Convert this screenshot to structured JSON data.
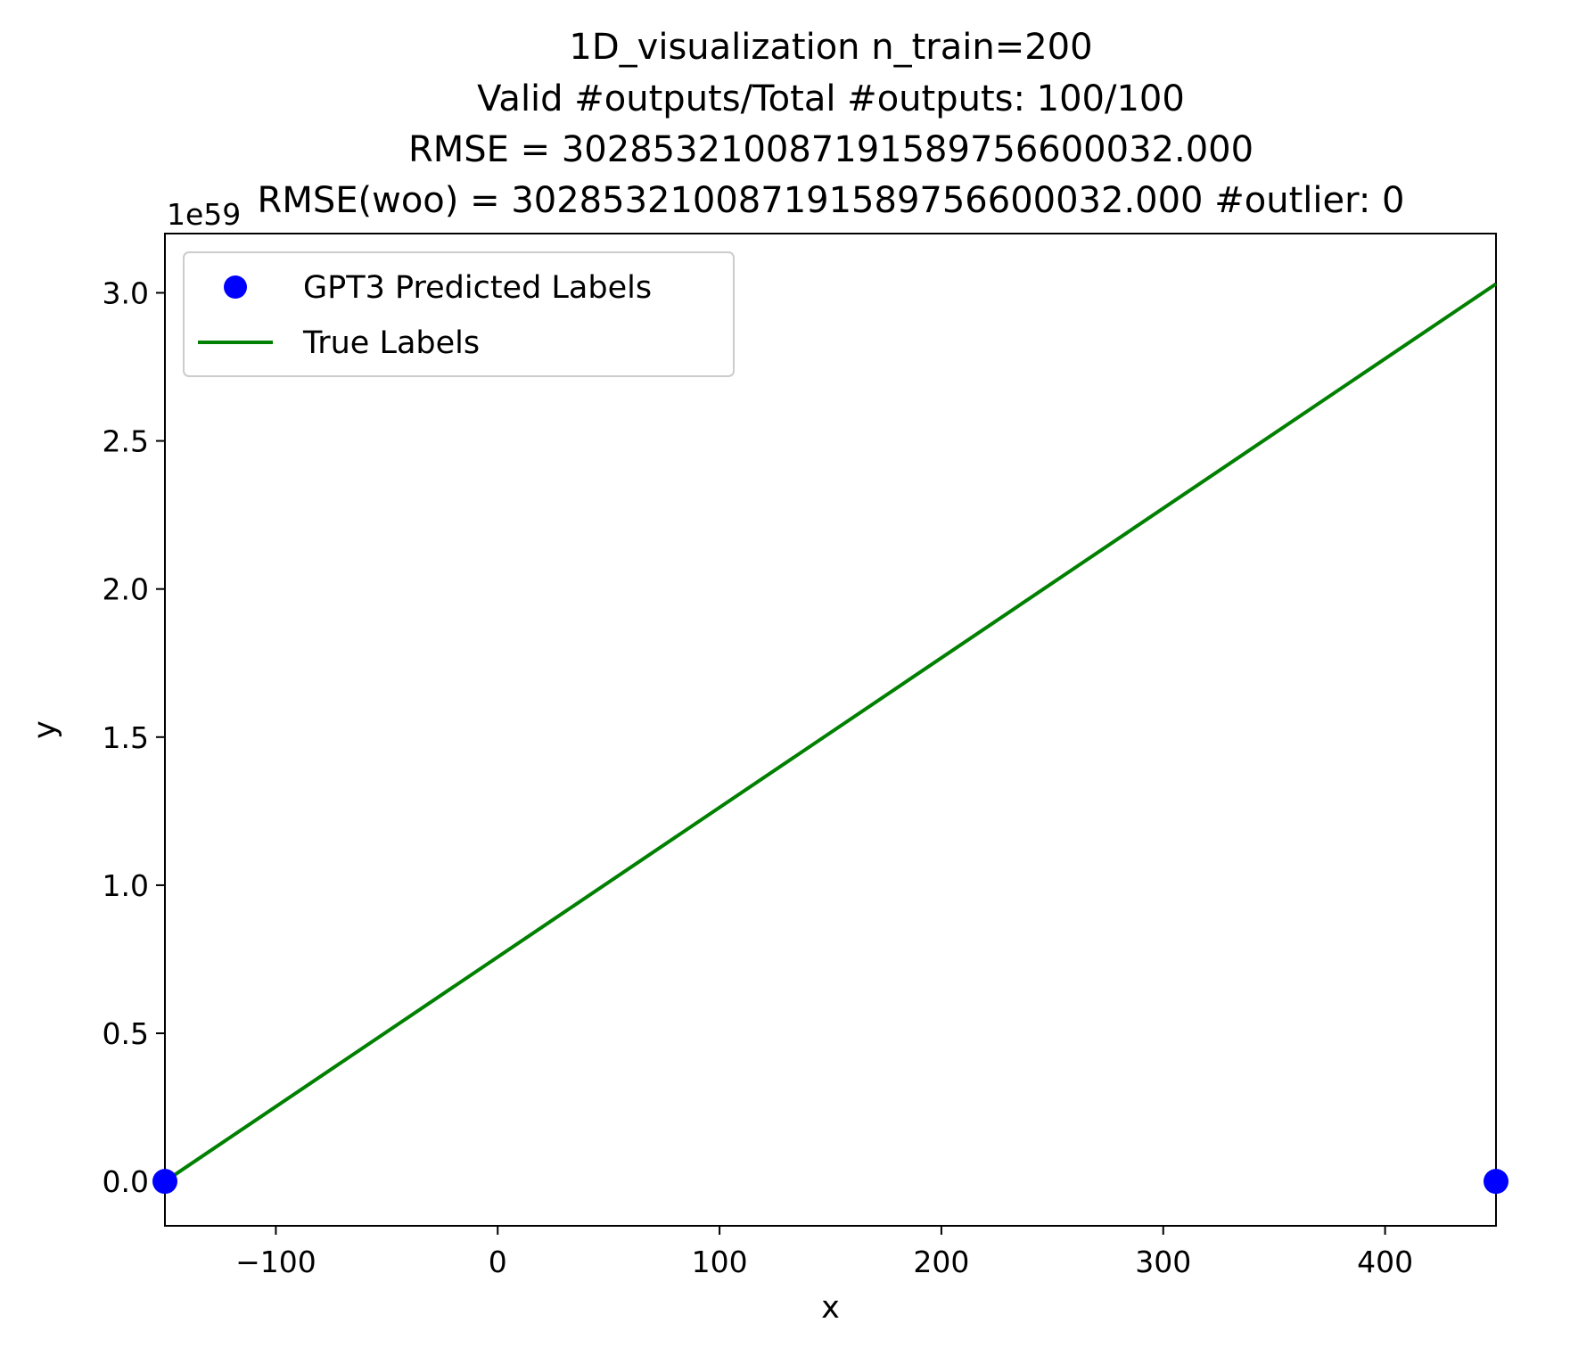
{
  "chart_data": {
    "type": "scatter",
    "title_lines": [
      "1D_visualization  n_train=200",
      "Valid #outputs/Total #outputs: 100/100",
      "RMSE      = 302853210087191589756600032.000",
      "RMSE(woo) = 302853210087191589756600032.000   #outlier: 0"
    ],
    "xlabel": "x",
    "ylabel": "y",
    "y_offset_label": "1e59",
    "xlim": [
      -150,
      450
    ],
    "ylim": [
      -0.15,
      3.2
    ],
    "xticks": [
      -100,
      0,
      100,
      200,
      300,
      400
    ],
    "xtick_labels": [
      "−100",
      "0",
      "100",
      "200",
      "300",
      "400"
    ],
    "yticks": [
      0.0,
      0.5,
      1.0,
      1.5,
      2.0,
      2.5,
      3.0
    ],
    "ytick_labels": [
      "0.0",
      "0.5",
      "1.0",
      "1.5",
      "2.0",
      "2.5",
      "3.0"
    ],
    "grid": false,
    "legend_position": "top-left",
    "series": [
      {
        "name": "GPT3 Predicted Labels",
        "kind": "scatter",
        "color": "#0000ff",
        "points": [
          {
            "x": -150,
            "y": 0.0
          },
          {
            "x": 450,
            "y": 0.0
          }
        ]
      },
      {
        "name": "True Labels",
        "kind": "line",
        "color": "#008000",
        "points": [
          {
            "x": -150,
            "y": 0.0
          },
          {
            "x": 450,
            "y": 3.03
          }
        ]
      }
    ]
  }
}
